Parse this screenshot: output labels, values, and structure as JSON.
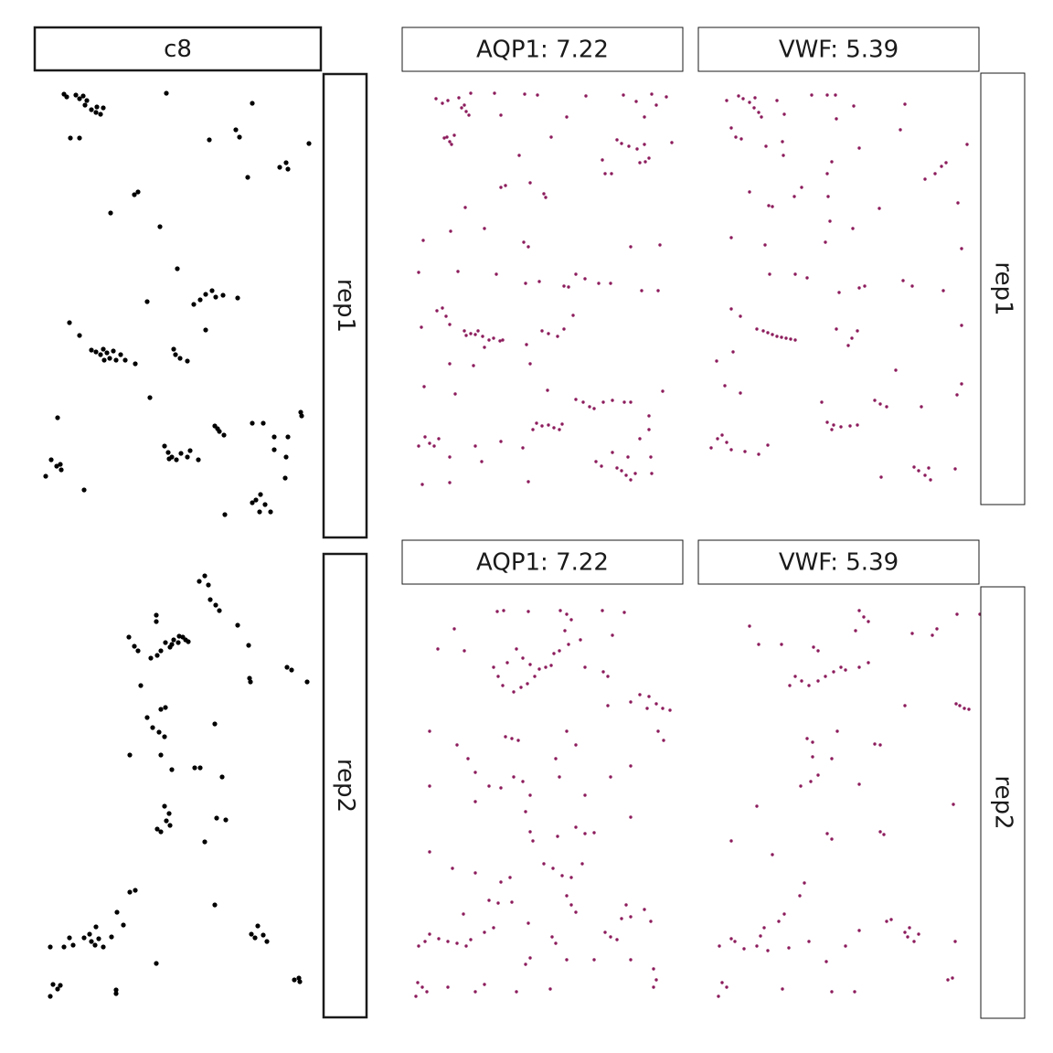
{
  "chart_data": [
    {
      "type": "scatter",
      "title": "c8",
      "row_label": "rep1",
      "color": "#000000",
      "xlim": [
        45,
        345
      ],
      "ylim": [
        570,
        95
      ],
      "x": [
        70,
        73,
        83,
        87,
        91,
        95,
        93,
        100,
        105,
        110,
        113,
        106,
        182,
        276,
        77,
        87,
        229,
        258,
        262,
        338,
        306,
        313,
        315,
        271,
        147,
        151,
        121,
        175,
        194,
        161,
        212,
        219,
        225,
        232,
        236,
        244,
        260,
        225,
        76,
        87,
        100,
        105,
        110,
        113,
        117,
        120,
        124,
        127,
        132,
        137,
        148,
        114,
        190,
        192,
        197,
        205,
        164,
        63,
        235,
        240,
        245,
        238,
        276,
        288,
        300,
        315,
        329,
        330,
        300,
        313,
        180,
        184,
        188,
        193,
        198,
        205,
        208,
        217,
        185,
        56,
        62,
        67,
        50,
        92,
        66,
        312,
        285,
        280,
        290,
        276,
        284,
        296,
        246
      ],
      "y": [
        103,
        106,
        104,
        108,
        105,
        110,
        115,
        120,
        123,
        125,
        118,
        117,
        102,
        113,
        151,
        151,
        153,
        142,
        150,
        157,
        183,
        178,
        185,
        194,
        213,
        210,
        233,
        248,
        294,
        330,
        333,
        328,
        322,
        318,
        325,
        323,
        326,
        361,
        353,
        367,
        383,
        385,
        388,
        382,
        386,
        392,
        384,
        394,
        388,
        394,
        398,
        394,
        382,
        388,
        392,
        395,
        435,
        457,
        466,
        472,
        476,
        469,
        463,
        463,
        478,
        478,
        451,
        455,
        492,
        500,
        488,
        495,
        500,
        503,
        496,
        500,
        493,
        503,
        502,
        503,
        510,
        514,
        521,
        536,
        508,
        523,
        541,
        547,
        552,
        550,
        560,
        560,
        563
      ]
    },
    {
      "type": "scatter",
      "row_label": "rep2",
      "color": "#000000",
      "xlim": [
        45,
        345
      ],
      "ylim": [
        1100,
        625
      ],
      "x": [
        218,
        224,
        228,
        230,
        236,
        240,
        260,
        171,
        171,
        141,
        147,
        151,
        165,
        172,
        176,
        181,
        186,
        190,
        195,
        200,
        206,
        203,
        196,
        188,
        272,
        273,
        274,
        314,
        319,
        336,
        154,
        176,
        181,
        161,
        167,
        174,
        180,
        176,
        142,
        235,
        213,
        219,
        188,
        243,
        180,
        185,
        182,
        172,
        176,
        186,
        237,
        247,
        224,
        142,
        148,
        235,
        128,
        135,
        105,
        98,
        92,
        100,
        104,
        108,
        113,
        76,
        70,
        55,
        80,
        122,
        282,
        275,
        279,
        288,
        292,
        171,
        322,
        327,
        328,
        58,
        63,
        55,
        66,
        127,
        127
      ],
      "y": [
        636,
        630,
        640,
        656,
        662,
        668,
        684,
        673,
        680,
        697,
        707,
        712,
        720,
        717,
        712,
        703,
        708,
        700,
        703,
        697,
        702,
        700,
        696,
        705,
        706,
        742,
        746,
        730,
        733,
        746,
        750,
        776,
        774,
        785,
        796,
        801,
        806,
        826,
        826,
        792,
        840,
        840,
        842,
        850,
        882,
        890,
        898,
        907,
        910,
        903,
        895,
        897,
        921,
        976,
        974,
        990,
        998,
        1012,
        1014,
        1022,
        1026,
        1030,
        1034,
        1027,
        1036,
        1026,
        1036,
        1036,
        1034,
        1025,
        1013,
        1022,
        1026,
        1023,
        1030,
        1054,
        1072,
        1070,
        1074,
        1077,
        1082,
        1090,
        1078,
        1083,
        1087
      ]
    },
    {
      "type": "scatter",
      "title": "AQP1: 7.22",
      "color": "#8c1c5c",
      "xlim": [
        450,
        740
      ],
      "ylim": [
        540,
        95
      ],
      "x": [
        477,
        484,
        490,
        505,
        510,
        513,
        508,
        515,
        502,
        541,
        574,
        588,
        641,
        682,
        713,
        729,
        696,
        718,
        705,
        548,
        620,
        486,
        492,
        497,
        489,
        494,
        603,
        675,
        680,
        688,
        697,
        705,
        735,
        706,
        710,
        700,
        659,
        568,
        662,
        669,
        548,
        553,
        580,
        595,
        597,
        509,
        530,
        463,
        493,
        573,
        578,
        690,
        722,
        458,
        501,
        543,
        575,
        590,
        617,
        622,
        630,
        640,
        655,
        668,
        702,
        720,
        478,
        484,
        488,
        508,
        515,
        520,
        528,
        540,
        550,
        510,
        523,
        535,
        547,
        492,
        593,
        600,
        610,
        617,
        627,
        461,
        576,
        580,
        518,
        492,
        530,
        464,
        498,
        599,
        630,
        638,
        645,
        650,
        660,
        670,
        683,
        725,
        710,
        690,
        587,
        593,
        600,
        606,
        612,
        615,
        583,
        465,
        470,
        475,
        480,
        458,
        492,
        520,
        527,
        548,
        572,
        652,
        658,
        670,
        675,
        680,
        685,
        690,
        695,
        687,
        700,
        710,
        713,
        712,
        462,
        492,
        578
      ],
      "y": [
        108,
        113,
        110,
        118,
        122,
        126,
        115,
        102,
        107,
        102,
        103,
        104,
        105,
        104,
        103,
        106,
        111,
        115,
        128,
        126,
        128,
        151,
        155,
        148,
        150,
        158,
        150,
        153,
        157,
        160,
        163,
        158,
        156,
        177,
        173,
        178,
        175,
        170,
        190,
        190,
        205,
        203,
        200,
        212,
        216,
        227,
        250,
        263,
        253,
        265,
        270,
        270,
        268,
        298,
        297,
        300,
        310,
        308,
        313,
        314,
        300,
        305,
        310,
        310,
        318,
        318,
        340,
        337,
        346,
        362,
        365,
        366,
        368,
        370,
        372,
        367,
        362,
        372,
        373,
        355,
        362,
        365,
        368,
        360,
        345,
        358,
        377,
        398,
        400,
        398,
        380,
        423,
        431,
        427,
        437,
        440,
        445,
        447,
        440,
        438,
        440,
        428,
        455,
        440,
        463,
        466,
        465,
        468,
        470,
        464,
        470,
        478,
        485,
        488,
        480,
        488,
        500,
        488,
        505,
        483,
        490,
        505,
        510,
        495,
        512,
        515,
        520,
        525,
        518,
        500,
        480,
        470,
        518,
        500,
        530,
        528,
        527
      ]
    },
    {
      "type": "scatter",
      "title": "VWF: 5.39",
      "row_label": "rep1",
      "color": "#8c1c5c",
      "xlim": [
        774,
        1064
      ],
      "ylim": [
        540,
        95
      ],
      "x": [
        795,
        808,
        813,
        820,
        825,
        830,
        833,
        826,
        850,
        888,
        905,
        914,
        990,
        934,
        858,
        915,
        985,
        800,
        805,
        811,
        856,
        857,
        838,
        940,
        1058,
        1035,
        1030,
        1023,
        1012,
        910,
        905,
        820,
        841,
        845,
        877,
        869,
        906,
        908,
        933,
        962,
        1048,
        800,
        837,
        903,
        1052,
        842,
        870,
        883,
        918,
        940,
        946,
        988,
        998,
        1032,
        800,
        810,
        828,
        840,
        850,
        860,
        870,
        835,
        845,
        855,
        865,
        915,
        932,
        938,
        928,
        1052,
        784,
        802,
        980,
        810,
        793,
        899,
        957,
        963,
        970,
        1008,
        1052,
        1047,
        905,
        912,
        920,
        930,
        938,
        910,
        785,
        790,
        795,
        800,
        778,
        815,
        830,
        840,
        1000,
        1005,
        1012,
        1018,
        1016,
        964,
        1045
      ],
      "y": [
        110,
        105,
        108,
        112,
        118,
        123,
        128,
        107,
        110,
        104,
        104,
        104,
        114,
        116,
        125,
        130,
        142,
        140,
        150,
        152,
        155,
        170,
        160,
        162,
        158,
        178,
        182,
        190,
        196,
        177,
        190,
        210,
        225,
        226,
        205,
        215,
        215,
        242,
        250,
        228,
        222,
        260,
        268,
        265,
        272,
        300,
        300,
        304,
        320,
        315,
        313,
        307,
        313,
        318,
        338,
        346,
        360,
        364,
        368,
        370,
        372,
        362,
        366,
        369,
        371,
        360,
        370,
        362,
        378,
        356,
        395,
        385,
        405,
        430,
        422,
        440,
        438,
        442,
        445,
        445,
        420,
        432,
        462,
        465,
        467,
        466,
        465,
        470,
        480,
        476,
        484,
        492,
        490,
        494,
        497,
        487,
        511,
        515,
        520,
        525,
        512,
        522,
        513
      ]
    },
    {
      "type": "scatter",
      "title": "AQP1: 7.22",
      "color": "#8c1c5c",
      "xlim": [
        450,
        740
      ],
      "ylim": [
        1100,
        655
      ],
      "x": [
        544,
        551,
        578,
        613,
        620,
        625,
        618,
        659,
        683,
        497,
        622,
        635,
        670,
        479,
        508,
        540,
        545,
        550,
        555,
        565,
        572,
        580,
        590,
        597,
        603,
        585,
        577,
        570,
        562,
        606,
        612,
        640,
        660,
        665,
        700,
        710,
        718,
        725,
        733,
        708,
        690,
        665,
        720,
        726,
        470,
        500,
        553,
        560,
        567,
        512,
        520,
        535,
        548,
        562,
        572,
        580,
        608,
        612,
        620,
        630,
        640,
        668,
        690,
        470,
        520,
        575,
        580,
        583,
        610,
        630,
        640,
        650,
        690,
        470,
        495,
        520,
        548,
        558,
        595,
        605,
        615,
        625,
        637,
        535,
        545,
        560,
        620,
        625,
        630,
        685,
        507,
        470,
        480,
        490,
        500,
        510,
        515,
        458,
        465,
        530,
        540,
        578,
        604,
        608,
        662,
        668,
        675,
        680,
        690,
        705,
        712,
        580,
        575,
        620,
        650,
        690,
        715,
        718,
        457,
        462,
        467,
        455,
        490,
        520,
        530,
        565,
        602,
        715
      ],
      "y": [
        669,
        668,
        669,
        668,
        672,
        678,
        690,
        668,
        670,
        688,
        705,
        700,
        695,
        710,
        712,
        730,
        740,
        750,
        725,
        710,
        720,
        727,
        732,
        730,
        728,
        740,
        748,
        752,
        757,
        715,
        712,
        730,
        735,
        740,
        760,
        762,
        770,
        775,
        777,
        775,
        768,
        772,
        800,
        810,
        800,
        815,
        806,
        808,
        810,
        830,
        845,
        860,
        862,
        850,
        855,
        870,
        830,
        850,
        800,
        815,
        870,
        850,
        838,
        860,
        877,
        888,
        910,
        920,
        915,
        905,
        912,
        911,
        894,
        932,
        950,
        955,
        965,
        960,
        945,
        950,
        958,
        960,
        945,
        985,
        988,
        987,
        980,
        990,
        998,
        990,
        1000,
        1022,
        1027,
        1030,
        1032,
        1035,
        1028,
        1035,
        1030,
        1020,
        1015,
        1010,
        1025,
        1032,
        1020,
        1025,
        1028,
        1005,
        1003,
        995,
        1008,
        1048,
        1055,
        1050,
        1050,
        1050,
        1060,
        1072,
        1075,
        1080,
        1085,
        1090,
        1080,
        1085,
        1077,
        1085,
        1082,
        1080
      ]
    },
    {
      "type": "scatter",
      "title": "VWF: 5.39",
      "row_label": "rep2",
      "color": "#8c1c5c",
      "xlim": [
        774,
        1064
      ],
      "ylim": [
        1100,
        655
      ],
      "x": [
        940,
        945,
        950,
        1047,
        1072,
        820,
        936,
        1025,
        1020,
        890,
        895,
        998,
        830,
        855,
        920,
        925,
        912,
        903,
        895,
        885,
        877,
        870,
        940,
        950,
        990,
        1050,
        1055,
        1060,
        1046,
        864,
        916,
        883,
        889,
        957,
        963,
        889,
        910,
        895,
        887,
        876,
        940,
        828,
        1043,
        905,
        910,
        967,
        963,
        800,
        845,
        880,
        875,
        858,
        852,
        836,
        832,
        828,
        840,
        804,
        787,
        800,
        814,
        863,
        885,
        904,
        925,
        970,
        975,
        990,
        993,
        1000,
        1005,
        995,
        940,
        1045,
        1042,
        1037,
        790,
        795,
        786,
        856,
        910,
        935
      ],
      "y": [
        668,
        675,
        680,
        672,
        672,
        685,
        690,
        688,
        695,
        708,
        712,
        693,
        705,
        705,
        730,
        733,
        735,
        740,
        745,
        750,
        745,
        740,
        730,
        725,
        772,
        772,
        775,
        776,
        770,
        750,
        800,
        808,
        812,
        814,
        815,
        828,
        830,
        848,
        855,
        860,
        858,
        882,
        880,
        912,
        918,
        913,
        910,
        920,
        935,
        966,
        980,
        1000,
        1008,
        1015,
        1024,
        1035,
        1040,
        1030,
        1035,
        1027,
        1038,
        1037,
        1030,
        1052,
        1035,
        1008,
        1006,
        1020,
        1025,
        1030,
        1022,
        1015,
        1018,
        1030,
        1070,
        1072,
        1075,
        1080,
        1090,
        1082,
        1085,
        1085
      ]
    }
  ]
}
